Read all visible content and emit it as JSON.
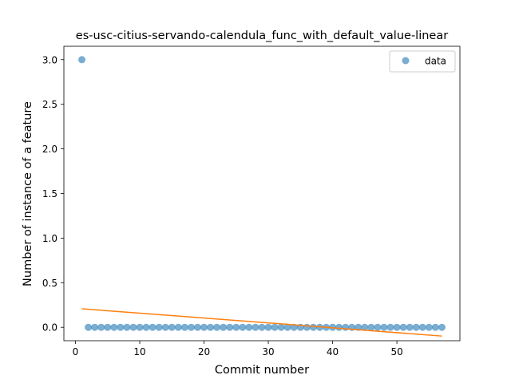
{
  "chart_data": {
    "type": "scatter",
    "title": "es-usc-citius-servando-calendula_func_with_default_value-linear",
    "xlabel": "Commit number",
    "ylabel": "Number of instance of a feature",
    "xlim": [
      -1.8,
      59.8
    ],
    "ylim": [
      -0.15,
      3.15
    ],
    "xticks": [
      0,
      10,
      20,
      30,
      40,
      50
    ],
    "yticks": [
      0.0,
      0.5,
      1.0,
      1.5,
      2.0,
      2.5,
      3.0
    ],
    "xtick_labels": [
      "0",
      "10",
      "20",
      "30",
      "40",
      "50"
    ],
    "ytick_labels": [
      "0.0",
      "0.5",
      "1.0",
      "1.5",
      "2.0",
      "2.5",
      "3.0"
    ],
    "legend_position": "top-right",
    "series": [
      {
        "name": "data",
        "kind": "scatter",
        "color": "#1f77b4",
        "x": [
          1,
          2,
          3,
          4,
          5,
          6,
          7,
          8,
          9,
          10,
          11,
          12,
          13,
          14,
          15,
          16,
          17,
          18,
          19,
          20,
          21,
          22,
          23,
          24,
          25,
          26,
          27,
          28,
          29,
          30,
          31,
          32,
          33,
          34,
          35,
          36,
          37,
          38,
          39,
          40,
          41,
          42,
          43,
          44,
          45,
          46,
          47,
          48,
          49,
          50,
          51,
          52,
          53,
          54,
          55,
          56,
          57
        ],
        "y": [
          3,
          0,
          0,
          0,
          0,
          0,
          0,
          0,
          0,
          0,
          0,
          0,
          0,
          0,
          0,
          0,
          0,
          0,
          0,
          0,
          0,
          0,
          0,
          0,
          0,
          0,
          0,
          0,
          0,
          0,
          0,
          0,
          0,
          0,
          0,
          0,
          0,
          0,
          0,
          0,
          0,
          0,
          0,
          0,
          0,
          0,
          0,
          0,
          0,
          0,
          0,
          0,
          0,
          0,
          0,
          0,
          0
        ]
      },
      {
        "kind": "line",
        "color": "#ff7f0e",
        "x": [
          1,
          57
        ],
        "y": [
          0.208,
          -0.098
        ]
      }
    ]
  }
}
